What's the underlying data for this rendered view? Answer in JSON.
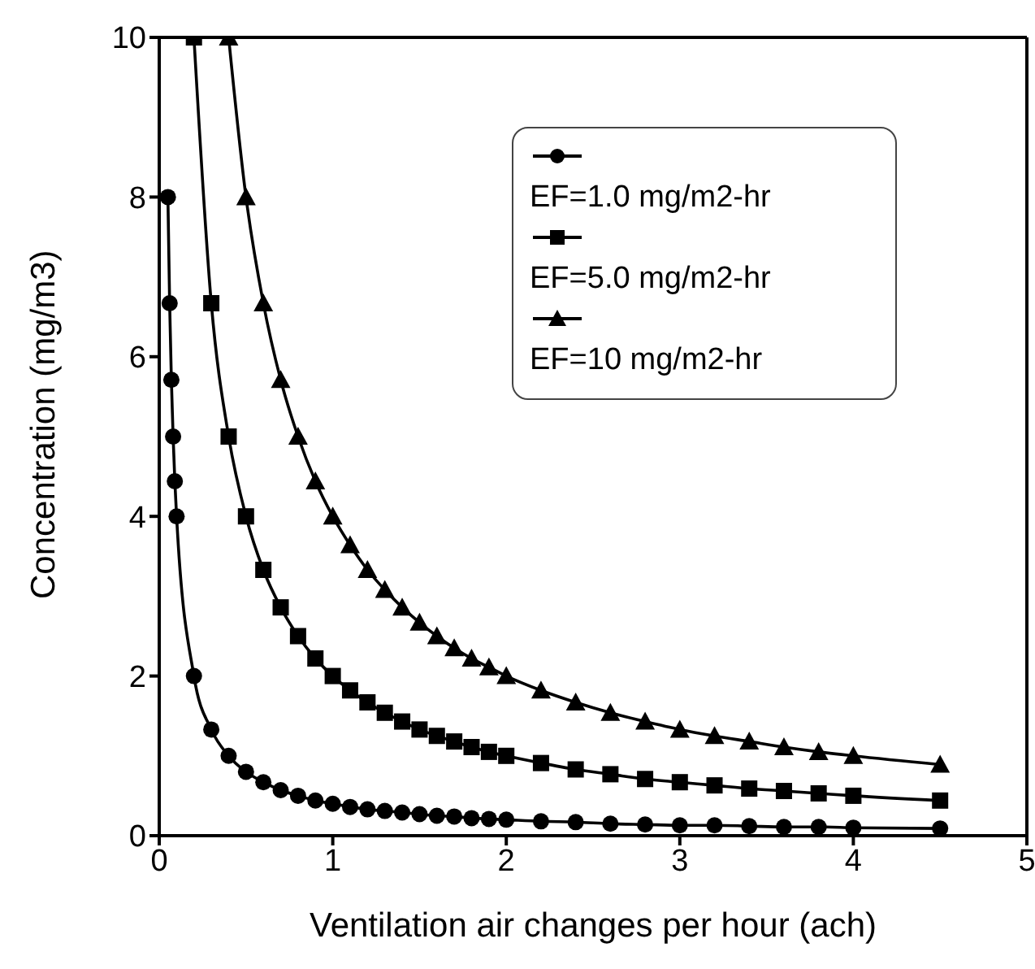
{
  "chart_data": {
    "type": "line",
    "xlabel": "Ventilation air changes per hour (ach)",
    "ylabel": "Concentration (mg/m3)",
    "xlim": [
      0,
      5
    ],
    "xticks": [
      0,
      1,
      2,
      3,
      4,
      5
    ],
    "ylim": [
      0,
      10
    ],
    "yticks": [
      0,
      2,
      4,
      6,
      8,
      10
    ],
    "legend": "top right",
    "line_style": "solid",
    "series": [
      {
        "name": "EF=1.0 mg/m2-hr",
        "color": "#000000",
        "marker": "circle",
        "x": [
          0.05,
          0.06,
          0.07,
          0.08,
          0.09,
          0.1,
          0.2,
          0.3,
          0.4,
          0.5,
          0.6,
          0.7,
          0.8,
          0.9,
          1.0,
          1.1,
          1.2,
          1.3,
          1.4,
          1.5,
          1.6,
          1.7,
          1.8,
          1.9,
          2.0,
          2.2,
          2.4,
          2.6,
          2.8,
          3.0,
          3.2,
          3.4,
          3.6,
          3.8,
          4.0,
          4.5
        ],
        "values": [
          8,
          6.67,
          5.71,
          5,
          4.44,
          4,
          2,
          1.33,
          1,
          0.8,
          0.67,
          0.57,
          0.5,
          0.44,
          0.4,
          0.36,
          0.33,
          0.31,
          0.29,
          0.27,
          0.25,
          0.24,
          0.22,
          0.21,
          0.2,
          0.18,
          0.17,
          0.15,
          0.14,
          0.13,
          0.13,
          0.12,
          0.11,
          0.11,
          0.1,
          0.09
        ]
      },
      {
        "name": "EF=5.0 mg/m2-hr",
        "color": "#000000",
        "marker": "square",
        "x": [
          0.2,
          0.3,
          0.4,
          0.5,
          0.6,
          0.7,
          0.8,
          0.9,
          1.0,
          1.1,
          1.2,
          1.3,
          1.4,
          1.5,
          1.6,
          1.7,
          1.8,
          1.9,
          2.0,
          2.2,
          2.4,
          2.6,
          2.8,
          3.0,
          3.2,
          3.4,
          3.6,
          3.8,
          4.0,
          4.5
        ],
        "values": [
          10,
          6.67,
          5,
          4,
          3.33,
          2.86,
          2.5,
          2.22,
          2,
          1.82,
          1.67,
          1.54,
          1.43,
          1.33,
          1.25,
          1.18,
          1.11,
          1.05,
          1.0,
          0.91,
          0.83,
          0.77,
          0.71,
          0.67,
          0.63,
          0.59,
          0.56,
          0.53,
          0.5,
          0.44
        ]
      },
      {
        "name": "EF=10 mg/m2-hr",
        "color": "#000000",
        "marker": "triangle",
        "x": [
          0.4,
          0.5,
          0.6,
          0.7,
          0.8,
          0.9,
          1.0,
          1.1,
          1.2,
          1.3,
          1.4,
          1.5,
          1.6,
          1.7,
          1.8,
          1.9,
          2.0,
          2.2,
          2.4,
          2.6,
          2.8,
          3.0,
          3.2,
          3.4,
          3.6,
          3.8,
          4.0,
          4.5
        ],
        "values": [
          10,
          8,
          6.67,
          5.71,
          5,
          4.44,
          4,
          3.64,
          3.33,
          3.08,
          2.86,
          2.67,
          2.5,
          2.35,
          2.22,
          2.11,
          2.0,
          1.82,
          1.67,
          1.54,
          1.43,
          1.33,
          1.25,
          1.18,
          1.11,
          1.05,
          1.0,
          0.89
        ]
      }
    ]
  }
}
